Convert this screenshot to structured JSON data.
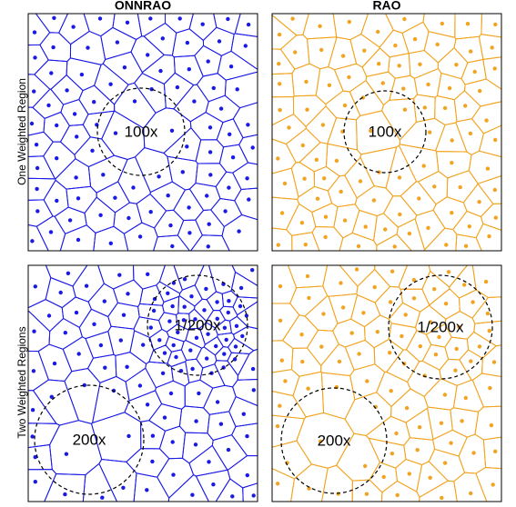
{
  "columns": [
    "ONNRAO",
    "RAO"
  ],
  "rows": [
    "One Weighted Region",
    "Two Weighted Regions"
  ],
  "panels": [
    {
      "labels": [
        "100x"
      ]
    },
    {
      "labels": [
        "100x"
      ]
    },
    {
      "labels": [
        "1/200x",
        "200x"
      ]
    },
    {
      "labels": [
        "1/200x",
        "200x"
      ]
    }
  ]
}
